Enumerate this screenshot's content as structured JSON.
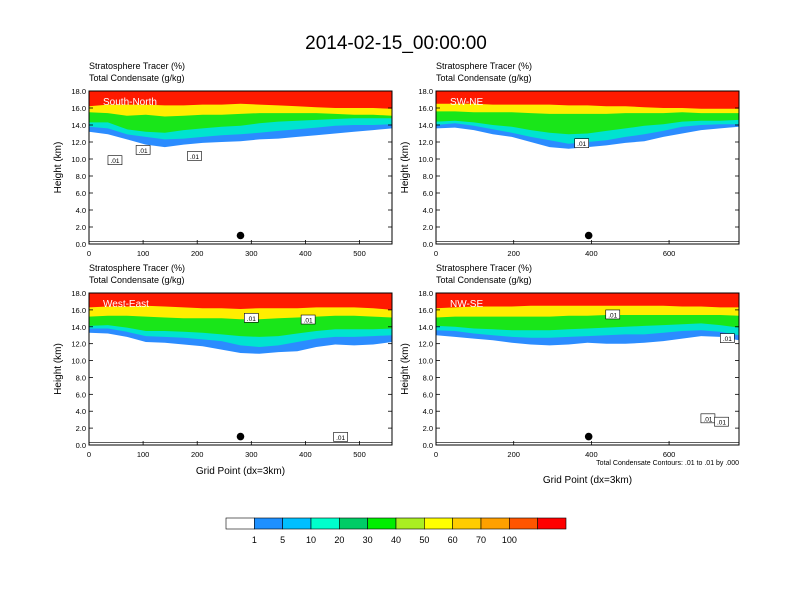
{
  "title": "2014-02-15_00:00:00",
  "common": {
    "field_label_1": "Stratosphere Tracer   (%)",
    "field_label_2": "Total Condensate   (g/kg)",
    "ylabel": "Height (km)",
    "xlabel": "Grid Point (dx=3km)",
    "contour_note": "Total Condensate Contours: .01 to .01 by .000",
    "contour_label": ".01",
    "y_ticks": [
      "0.0",
      "2.0",
      "4.0",
      "6.0",
      "8.0",
      "10.0",
      "12.0",
      "14.0",
      "16.0",
      "18.0"
    ]
  },
  "colorbar": {
    "labels": [
      "1",
      "5",
      "10",
      "20",
      "30",
      "40",
      "50",
      "60",
      "70",
      "100"
    ],
    "colors": [
      "#ffffff",
      "#1e90ff",
      "#00bfff",
      "#00ffcc",
      "#00cc66",
      "#00ee00",
      "#aaee22",
      "#ffff00",
      "#ffcc00",
      "#ffa000",
      "#ff5500",
      "#ff0000"
    ]
  },
  "chart_data": [
    {
      "type": "contour",
      "panel": "South-North",
      "ylim": [
        0,
        18
      ],
      "xlim": [
        0,
        560
      ],
      "x_ticks": [
        0,
        100,
        200,
        300,
        400,
        500
      ],
      "marker": {
        "x": 280,
        "y": 1.0
      },
      "contour_labels": [
        {
          "x": 48,
          "y": 9.8
        },
        {
          "x": 100,
          "y": 11.0
        },
        {
          "x": 195,
          "y": 10.3
        }
      ],
      "layers": [
        {
          "value": 1,
          "base": [
            13.2,
            12.9,
            12.3,
            11.7,
            11.4,
            11.7,
            11.9,
            12.0,
            12.1,
            12.3,
            12.4,
            12.6,
            12.8,
            13.0,
            13.2,
            13.4,
            13.6
          ]
        },
        {
          "value": 10,
          "base": [
            13.8,
            13.6,
            12.9,
            12.6,
            12.3,
            12.4,
            12.6,
            12.8,
            12.9,
            13.1,
            13.3,
            13.5,
            13.7,
            13.9,
            14.0,
            14.0,
            14.1
          ]
        },
        {
          "value": 30,
          "base": [
            14.3,
            14.3,
            13.5,
            13.2,
            13.1,
            13.4,
            13.6,
            13.8,
            13.9,
            14.2,
            14.4,
            14.5,
            14.6,
            14.7,
            14.8,
            14.8,
            14.8
          ]
        },
        {
          "value": 50,
          "base": [
            15.5,
            15.4,
            15.1,
            15.2,
            15.0,
            15.1,
            15.2,
            15.2,
            15.3,
            15.4,
            15.4,
            15.4,
            15.4,
            15.3,
            15.2,
            15.2,
            15.1
          ]
        },
        {
          "value": 70,
          "base": [
            16.2,
            16.4,
            16.4,
            16.4,
            16.3,
            16.3,
            16.4,
            16.4,
            16.5,
            16.4,
            16.3,
            16.2,
            16.1,
            16.0,
            16.0,
            16.0,
            15.9
          ]
        }
      ]
    },
    {
      "type": "contour",
      "panel": "SW-NE",
      "ylim": [
        0,
        18
      ],
      "xlim": [
        0,
        780
      ],
      "x_ticks": [
        0,
        200,
        400,
        600
      ],
      "marker": {
        "x": 393,
        "y": 1.0
      },
      "contour_labels": [
        {
          "x": 375,
          "y": 11.8
        }
      ],
      "layers": [
        {
          "value": 1,
          "base": [
            13.6,
            13.7,
            13.4,
            12.9,
            12.6,
            12.0,
            11.4,
            11.2,
            11.4,
            11.6,
            11.9,
            12.1,
            12.6,
            13.0,
            13.4,
            13.6,
            13.8
          ]
        },
        {
          "value": 10,
          "base": [
            14.0,
            14.2,
            13.9,
            13.5,
            13.1,
            12.6,
            12.2,
            11.8,
            12.0,
            12.2,
            12.6,
            12.9,
            13.3,
            13.8,
            14.0,
            14.1,
            14.1
          ]
        },
        {
          "value": 30,
          "base": [
            14.4,
            14.5,
            14.3,
            14.0,
            13.8,
            13.4,
            13.1,
            12.9,
            13.0,
            13.3,
            13.6,
            13.9,
            14.1,
            14.4,
            14.5,
            14.5,
            14.6
          ]
        },
        {
          "value": 50,
          "base": [
            15.6,
            15.6,
            15.5,
            15.5,
            15.5,
            15.4,
            15.3,
            15.3,
            15.3,
            15.3,
            15.4,
            15.4,
            15.4,
            15.5,
            15.4,
            15.4,
            15.4
          ]
        },
        {
          "value": 70,
          "base": [
            16.5,
            16.5,
            16.5,
            16.4,
            16.4,
            16.4,
            16.4,
            16.3,
            16.3,
            16.2,
            16.2,
            16.1,
            16.0,
            16.0,
            15.9,
            15.9,
            15.9
          ]
        }
      ]
    },
    {
      "type": "contour",
      "panel": "West-East",
      "ylim": [
        0,
        18
      ],
      "xlim": [
        0,
        560
      ],
      "x_ticks": [
        0,
        100,
        200,
        300,
        400,
        500
      ],
      "marker": {
        "x": 280,
        "y": 1.0
      },
      "contour_labels": [
        {
          "x": 300,
          "y": 15.0
        },
        {
          "x": 405,
          "y": 14.8
        },
        {
          "x": 465,
          "y": 0.9
        }
      ],
      "layers": [
        {
          "value": 1,
          "base": [
            13.3,
            13.2,
            12.8,
            12.2,
            12.1,
            11.9,
            11.7,
            11.3,
            10.9,
            10.8,
            11.0,
            11.1,
            11.6,
            11.9,
            11.8,
            11.9,
            12.2
          ]
        },
        {
          "value": 10,
          "base": [
            13.8,
            13.8,
            13.4,
            12.9,
            12.8,
            12.7,
            12.5,
            12.3,
            11.8,
            11.6,
            11.8,
            12.2,
            12.6,
            12.8,
            12.8,
            12.9,
            13.0
          ]
        },
        {
          "value": 30,
          "base": [
            14.1,
            14.2,
            13.9,
            13.5,
            13.5,
            13.4,
            13.3,
            13.1,
            12.9,
            12.8,
            12.9,
            13.2,
            13.5,
            13.7,
            13.7,
            13.7,
            13.8
          ]
        },
        {
          "value": 50,
          "base": [
            15.2,
            15.3,
            15.3,
            15.2,
            15.1,
            15.0,
            15.0,
            15.0,
            14.9,
            14.9,
            15.0,
            15.1,
            15.2,
            15.3,
            15.3,
            15.2,
            15.1
          ]
        },
        {
          "value": 70,
          "base": [
            16.3,
            16.4,
            16.4,
            16.5,
            16.4,
            16.3,
            16.2,
            16.2,
            16.1,
            16.2,
            16.2,
            16.2,
            16.3,
            16.3,
            16.3,
            16.2,
            16.0
          ]
        }
      ]
    },
    {
      "type": "contour",
      "panel": "NW-SE",
      "ylim": [
        0,
        18
      ],
      "xlim": [
        0,
        780
      ],
      "x_ticks": [
        0,
        200,
        400,
        600
      ],
      "marker": {
        "x": 393,
        "y": 1.0
      },
      "contour_labels": [
        {
          "x": 455,
          "y": 15.4
        },
        {
          "x": 750,
          "y": 12.6
        },
        {
          "x": 700,
          "y": 3.1
        },
        {
          "x": 735,
          "y": 2.7
        }
      ],
      "layers": [
        {
          "value": 1,
          "base": [
            13.0,
            12.8,
            12.6,
            12.4,
            12.1,
            11.9,
            11.8,
            11.9,
            12.1,
            12.0,
            12.0,
            12.1,
            12.3,
            12.6,
            12.9,
            12.8,
            12.4
          ]
        },
        {
          "value": 10,
          "base": [
            13.6,
            13.5,
            13.2,
            13.0,
            12.8,
            12.7,
            12.7,
            12.8,
            12.9,
            13.0,
            13.1,
            13.1,
            13.3,
            13.5,
            13.6,
            13.4,
            13.0
          ]
        },
        {
          "value": 30,
          "base": [
            14.1,
            14.0,
            13.8,
            13.7,
            13.6,
            13.6,
            13.6,
            13.7,
            13.8,
            13.9,
            14.0,
            14.1,
            14.2,
            14.3,
            14.4,
            14.2,
            13.9
          ]
        },
        {
          "value": 50,
          "base": [
            15.1,
            15.2,
            15.2,
            15.2,
            15.2,
            15.2,
            15.2,
            15.3,
            15.3,
            15.4,
            15.4,
            15.4,
            15.4,
            15.4,
            15.4,
            15.4,
            15.3
          ]
        },
        {
          "value": 70,
          "base": [
            16.2,
            16.3,
            16.4,
            16.4,
            16.4,
            16.5,
            16.5,
            16.5,
            16.5,
            16.5,
            16.5,
            16.5,
            16.5,
            16.4,
            16.4,
            16.3,
            16.3
          ]
        }
      ]
    }
  ]
}
